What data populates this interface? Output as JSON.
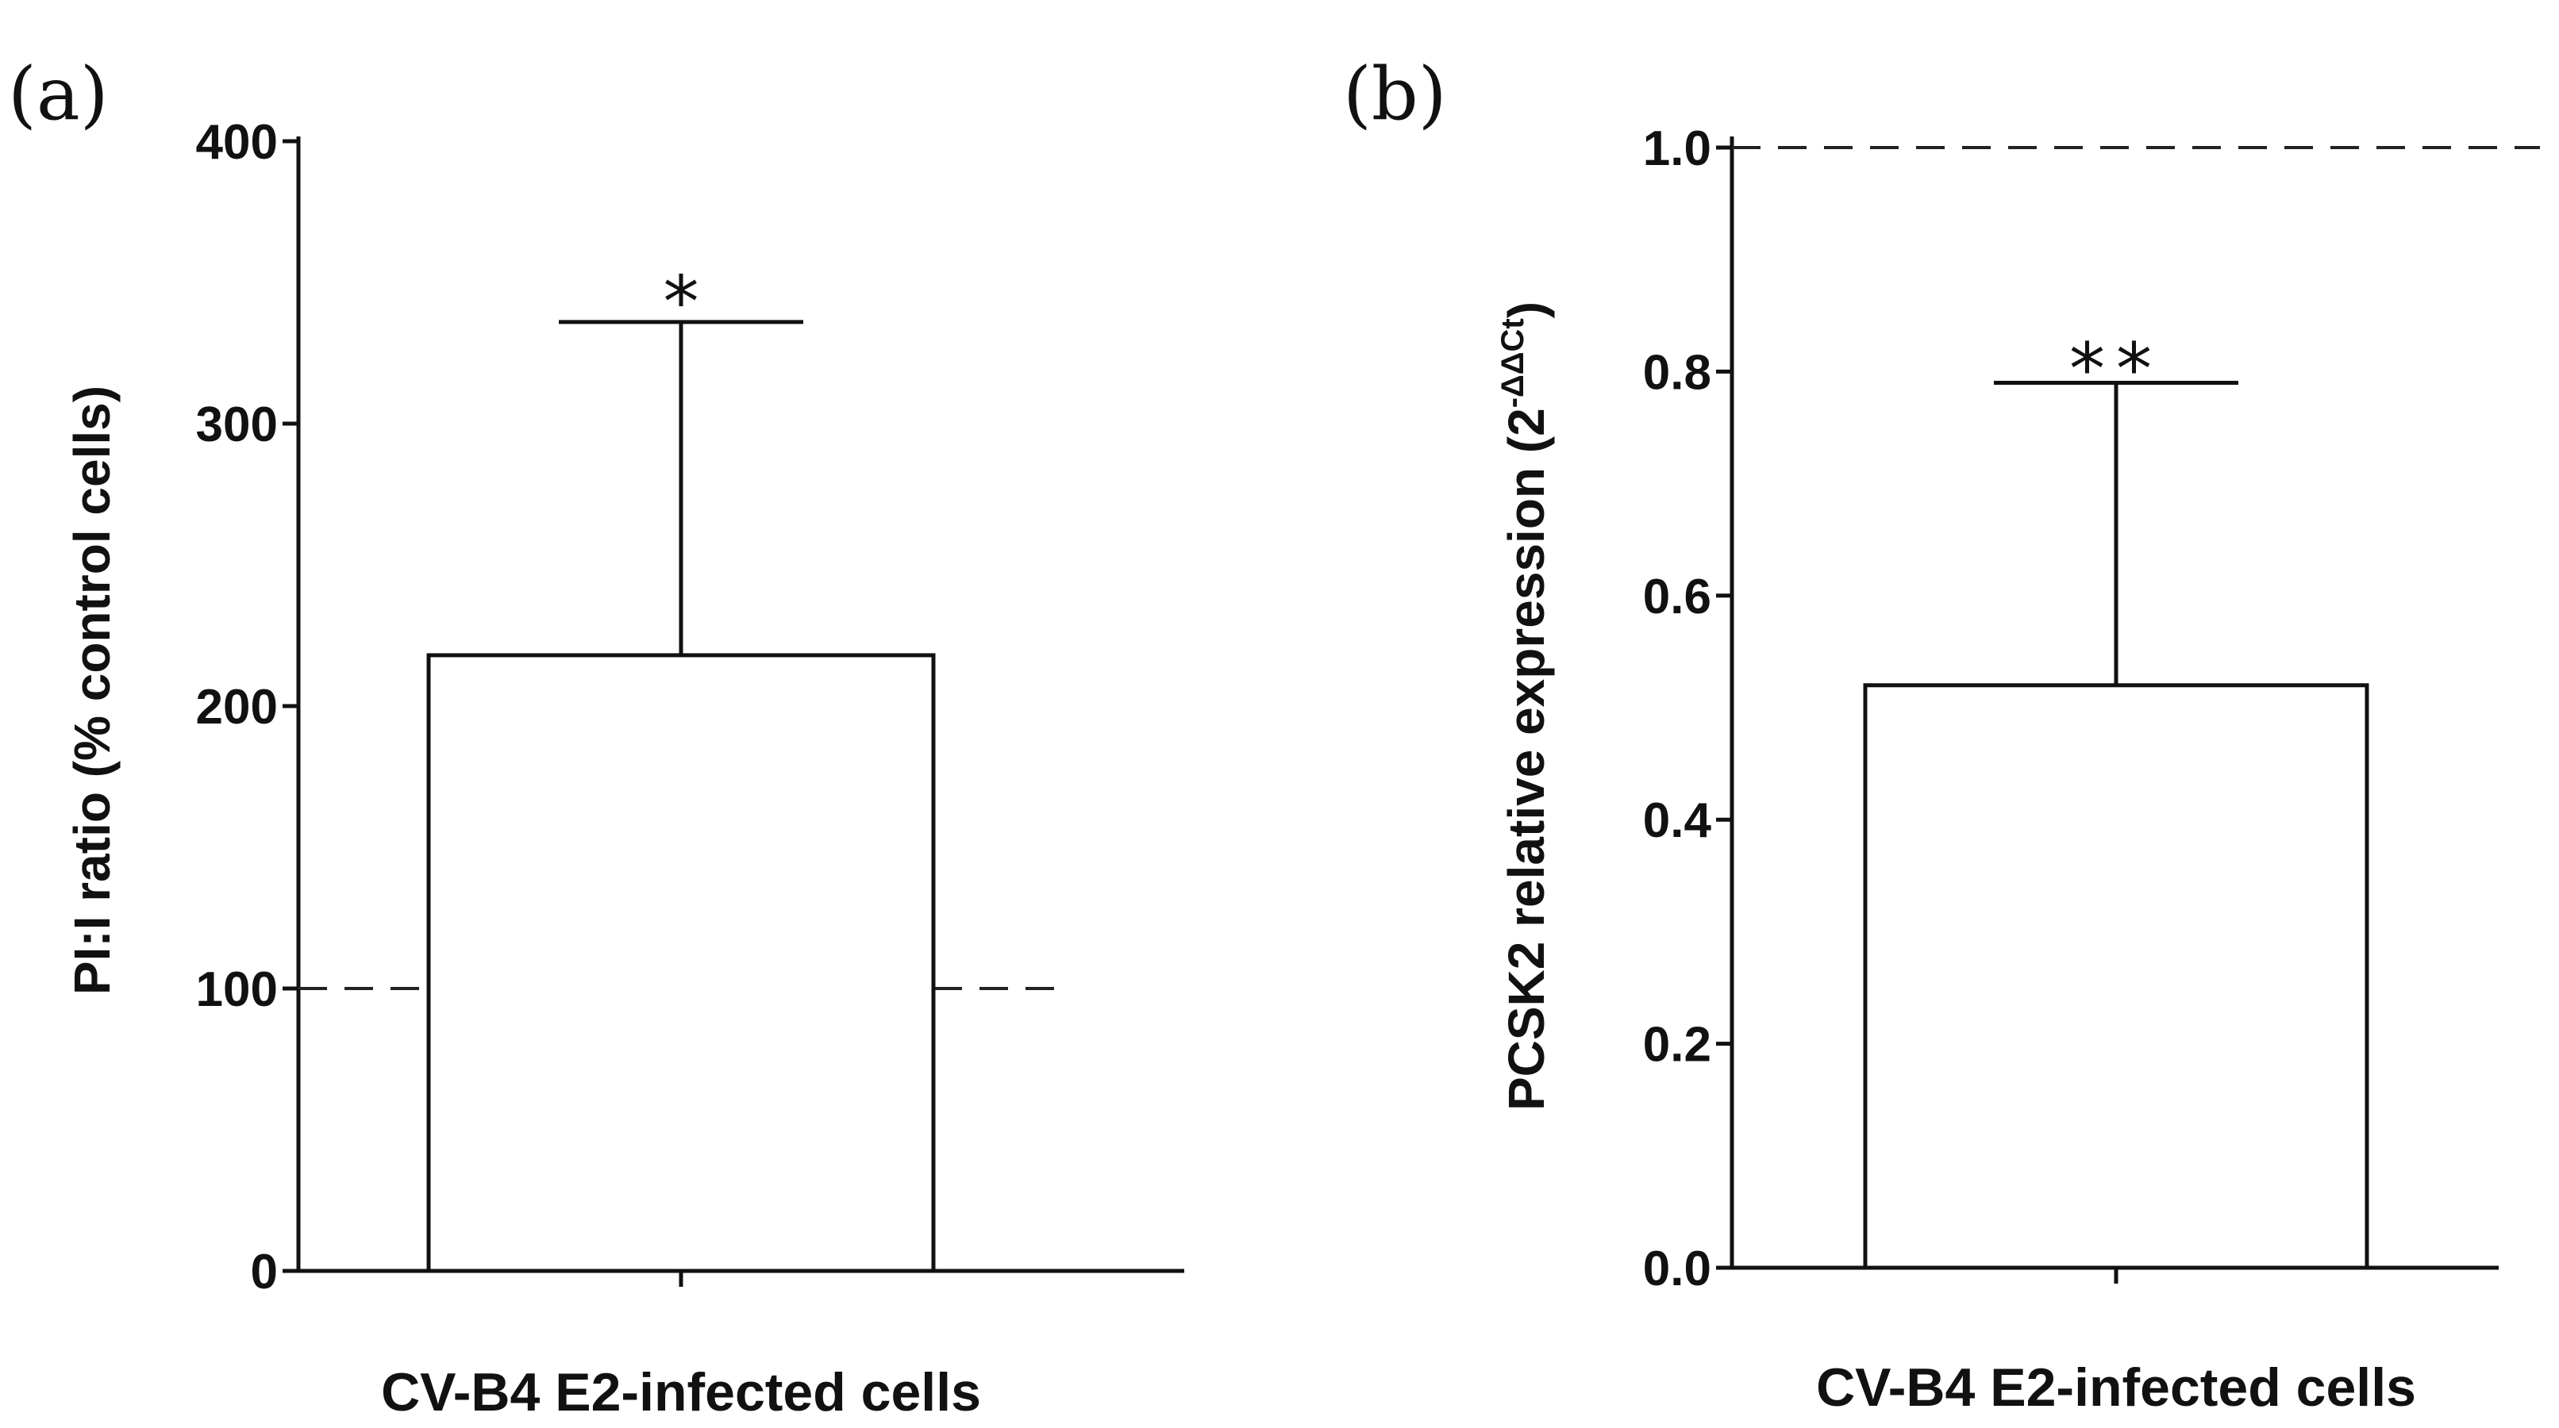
{
  "chart_data": [
    {
      "panel": "(a)",
      "type": "bar",
      "categories": [
        "CV-B4 E2-infected cells"
      ],
      "values": [
        218
      ],
      "error_upper": [
        336
      ],
      "significance": "*",
      "reference_line": 100,
      "title": "",
      "xlabel": "CV-B4 E2-infected cells",
      "ylabel": "PI:I ratio (% control cells)",
      "ylim": [
        0,
        400
      ],
      "yticks": [
        "0",
        "100",
        "200",
        "300",
        "400"
      ]
    },
    {
      "panel": "(b)",
      "type": "bar",
      "categories": [
        "CV-B4 E2-infected cells"
      ],
      "values": [
        0.52
      ],
      "error_upper": [
        0.79
      ],
      "significance": "**",
      "reference_line": 1.0,
      "title": "",
      "xlabel": "CV-B4 E2-infected cells",
      "ylabel": "PCSK2 relative expression (2",
      "ylabel_superscript": "-ΔΔCt",
      "ylabel_close": ")",
      "ylim": [
        0,
        1.0
      ],
      "yticks": [
        "0.0",
        "0.2",
        "0.4",
        "0.6",
        "0.8",
        "1.0"
      ]
    }
  ]
}
